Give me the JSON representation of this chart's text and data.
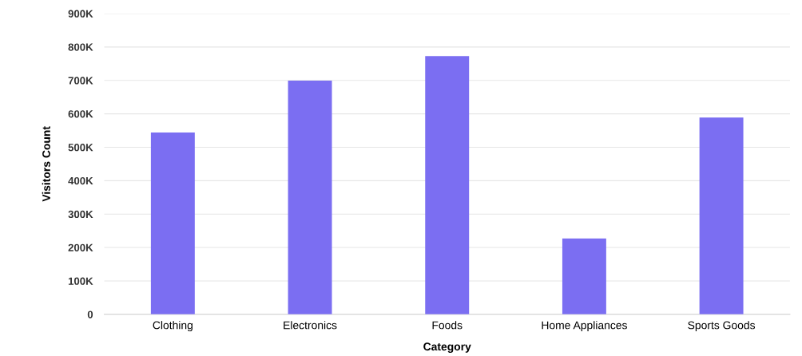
{
  "chart_data": {
    "type": "bar",
    "xlabel": "Category",
    "ylabel": "Visitors Count",
    "categories": [
      "Clothing",
      "Electronics",
      "Foods",
      "Home Appliances",
      "Sports Goods"
    ],
    "values": [
      544000,
      699000,
      773000,
      227000,
      589000
    ],
    "color": "#7b6ef2",
    "ylim": [
      0,
      900000
    ],
    "yticks": [
      {
        "value": 0,
        "label": "0"
      },
      {
        "value": 100000,
        "label": "100K"
      },
      {
        "value": 200000,
        "label": "200K"
      },
      {
        "value": 300000,
        "label": "300K"
      },
      {
        "value": 400000,
        "label": "400K"
      },
      {
        "value": 500000,
        "label": "500K"
      },
      {
        "value": 600000,
        "label": "600K"
      },
      {
        "value": 700000,
        "label": "700K"
      },
      {
        "value": 800000,
        "label": "800K"
      },
      {
        "value": 900000,
        "label": "900K"
      }
    ],
    "grid": "y",
    "legend": false
  }
}
